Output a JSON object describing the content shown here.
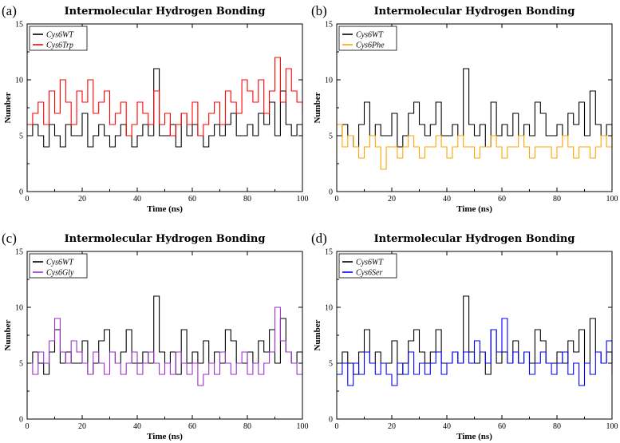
{
  "chart_data": [
    {
      "type": "line",
      "panel_label": "(a)",
      "title": "Intermolecular Hydrogen Bonding",
      "xlabel": "Time (ns)",
      "ylabel": "Number",
      "xlim": [
        0,
        100
      ],
      "ylim": [
        0,
        15
      ],
      "xticks": [
        "0",
        "20",
        "40",
        "60",
        "80",
        "100"
      ],
      "yticks": [
        "0",
        "5",
        "10",
        "15"
      ],
      "legend": [
        "Cys6WT",
        "Cys6Trp"
      ],
      "series": [
        {
          "name": "Cys6WT",
          "color": "#000000",
          "x": [
            0,
            2,
            4,
            6,
            8,
            10,
            12,
            14,
            16,
            18,
            20,
            22,
            24,
            26,
            28,
            30,
            32,
            34,
            36,
            38,
            40,
            42,
            44,
            46,
            48,
            50,
            52,
            54,
            56,
            58,
            60,
            62,
            64,
            66,
            68,
            70,
            72,
            74,
            76,
            78,
            80,
            82,
            84,
            86,
            88,
            90,
            92,
            94,
            96,
            98,
            100
          ],
          "y": [
            5,
            6,
            5,
            4,
            6,
            5,
            4,
            6,
            5,
            5,
            7,
            4,
            5,
            6,
            5,
            4,
            5,
            6,
            5,
            4,
            5,
            6,
            5,
            11,
            5,
            5,
            6,
            4,
            7,
            5,
            6,
            5,
            4,
            5,
            6,
            5,
            6,
            7,
            5,
            5,
            6,
            5,
            7,
            6,
            8,
            5,
            9,
            6,
            5,
            6,
            5
          ]
        },
        {
          "name": "Cys6Trp",
          "color": "#ff0000",
          "x": [
            0,
            2,
            4,
            6,
            8,
            10,
            12,
            14,
            16,
            18,
            20,
            22,
            24,
            26,
            28,
            30,
            32,
            34,
            36,
            38,
            40,
            42,
            44,
            46,
            48,
            50,
            52,
            54,
            56,
            58,
            60,
            62,
            64,
            66,
            68,
            70,
            72,
            74,
            76,
            78,
            80,
            82,
            84,
            86,
            88,
            90,
            92,
            94,
            96,
            98,
            100
          ],
          "y": [
            6,
            7,
            8,
            6,
            9,
            7,
            10,
            8,
            6,
            9,
            8,
            10,
            7,
            8,
            9,
            6,
            7,
            8,
            5,
            6,
            8,
            7,
            6,
            9,
            6,
            7,
            5,
            6,
            7,
            6,
            8,
            5,
            6,
            7,
            8,
            6,
            9,
            8,
            7,
            10,
            9,
            8,
            10,
            7,
            9,
            12,
            8,
            11,
            9,
            8,
            7
          ]
        }
      ]
    },
    {
      "type": "line",
      "panel_label": "(b)",
      "title": "Intermolecular Hydrogen Bonding",
      "xlabel": "Time (ns)",
      "ylabel": "Number",
      "xlim": [
        0,
        100
      ],
      "ylim": [
        0,
        15
      ],
      "xticks": [
        "0",
        "20",
        "40",
        "60",
        "80",
        "100"
      ],
      "yticks": [
        "0",
        "5",
        "10",
        "15"
      ],
      "legend": [
        "Cys6WT",
        "Cys6Phe"
      ],
      "series": [
        {
          "name": "Cys6WT",
          "color": "#000000",
          "x": [
            0,
            2,
            4,
            6,
            8,
            10,
            12,
            14,
            16,
            18,
            20,
            22,
            24,
            26,
            28,
            30,
            32,
            34,
            36,
            38,
            40,
            42,
            44,
            46,
            48,
            50,
            52,
            54,
            56,
            58,
            60,
            62,
            64,
            66,
            68,
            70,
            72,
            74,
            76,
            78,
            80,
            82,
            84,
            86,
            88,
            90,
            92,
            94,
            96,
            98,
            100
          ],
          "y": [
            5,
            6,
            5,
            4,
            6,
            8,
            5,
            6,
            5,
            5,
            7,
            4,
            5,
            7,
            8,
            6,
            5,
            6,
            8,
            5,
            5,
            6,
            5,
            11,
            6,
            5,
            6,
            4,
            8,
            5,
            6,
            5,
            7,
            5,
            6,
            5,
            8,
            7,
            5,
            5,
            6,
            5,
            7,
            6,
            8,
            5,
            9,
            6,
            5,
            6,
            5
          ]
        },
        {
          "name": "Cys6Phe",
          "color": "#ffa500",
          "x": [
            0,
            2,
            4,
            6,
            8,
            10,
            12,
            14,
            16,
            18,
            20,
            22,
            24,
            26,
            28,
            30,
            32,
            34,
            36,
            38,
            40,
            42,
            44,
            46,
            48,
            50,
            52,
            54,
            56,
            58,
            60,
            62,
            64,
            66,
            68,
            70,
            72,
            74,
            76,
            78,
            80,
            82,
            84,
            86,
            88,
            90,
            92,
            94,
            96,
            98,
            100
          ],
          "y": [
            6,
            4,
            5,
            4,
            3,
            4,
            5,
            4,
            2,
            4,
            4,
            3,
            4,
            5,
            4,
            3,
            4,
            4,
            5,
            4,
            3,
            4,
            5,
            4,
            4,
            3,
            4,
            4,
            5,
            4,
            3,
            4,
            4,
            5,
            4,
            3,
            4,
            4,
            4,
            3,
            4,
            5,
            4,
            3,
            4,
            4,
            3,
            4,
            5,
            4,
            5
          ]
        }
      ]
    },
    {
      "type": "line",
      "panel_label": "(c)",
      "title": "Intermolecular Hydrogen Bonding",
      "xlabel": "Time (ns)",
      "ylabel": "Number",
      "xlim": [
        0,
        100
      ],
      "ylim": [
        0,
        15
      ],
      "xticks": [
        "0",
        "20",
        "40",
        "60",
        "80",
        "100"
      ],
      "yticks": [
        "0",
        "5",
        "10",
        "15"
      ],
      "legend": [
        "Cys6WT",
        "Cys6Gly"
      ],
      "series": [
        {
          "name": "Cys6WT",
          "color": "#000000",
          "x": [
            0,
            2,
            4,
            6,
            8,
            10,
            12,
            14,
            16,
            18,
            20,
            22,
            24,
            26,
            28,
            30,
            32,
            34,
            36,
            38,
            40,
            42,
            44,
            46,
            48,
            50,
            52,
            54,
            56,
            58,
            60,
            62,
            64,
            66,
            68,
            70,
            72,
            74,
            76,
            78,
            80,
            82,
            84,
            86,
            88,
            90,
            92,
            94,
            96,
            98,
            100
          ],
          "y": [
            5,
            6,
            5,
            4,
            6,
            8,
            5,
            6,
            5,
            5,
            7,
            4,
            5,
            7,
            8,
            6,
            5,
            6,
            8,
            5,
            5,
            6,
            5,
            11,
            6,
            5,
            6,
            4,
            8,
            5,
            6,
            5,
            7,
            5,
            6,
            5,
            8,
            7,
            5,
            5,
            6,
            5,
            7,
            6,
            8,
            5,
            9,
            6,
            5,
            6,
            5
          ]
        },
        {
          "name": "Cys6Gly",
          "color": "#9932cc",
          "x": [
            0,
            2,
            4,
            6,
            8,
            10,
            12,
            14,
            16,
            18,
            20,
            22,
            24,
            26,
            28,
            30,
            32,
            34,
            36,
            38,
            40,
            42,
            44,
            46,
            48,
            50,
            52,
            54,
            56,
            58,
            60,
            62,
            64,
            66,
            68,
            70,
            72,
            74,
            76,
            78,
            80,
            82,
            84,
            86,
            88,
            90,
            92,
            94,
            96,
            98,
            100
          ],
          "y": [
            5,
            4,
            6,
            5,
            7,
            9,
            6,
            5,
            7,
            6,
            5,
            4,
            6,
            5,
            4,
            6,
            5,
            4,
            5,
            6,
            4,
            5,
            6,
            5,
            4,
            5,
            4,
            6,
            5,
            4,
            5,
            3,
            4,
            5,
            4,
            6,
            5,
            4,
            5,
            6,
            4,
            5,
            4,
            5,
            6,
            10,
            7,
            6,
            5,
            4,
            5
          ]
        }
      ]
    },
    {
      "type": "line",
      "panel_label": "(d)",
      "title": "Intermolecular Hydrogen Bonding",
      "xlabel": "Time (ns)",
      "ylabel": "Number",
      "xlim": [
        0,
        100
      ],
      "ylim": [
        0,
        15
      ],
      "xticks": [
        "0",
        "20",
        "40",
        "60",
        "80",
        "100"
      ],
      "yticks": [
        "0",
        "5",
        "10",
        "15"
      ],
      "legend": [
        "Cys6WT",
        "Cys6Ser"
      ],
      "series": [
        {
          "name": "Cys6WT",
          "color": "#000000",
          "x": [
            0,
            2,
            4,
            6,
            8,
            10,
            12,
            14,
            16,
            18,
            20,
            22,
            24,
            26,
            28,
            30,
            32,
            34,
            36,
            38,
            40,
            42,
            44,
            46,
            48,
            50,
            52,
            54,
            56,
            58,
            60,
            62,
            64,
            66,
            68,
            70,
            72,
            74,
            76,
            78,
            80,
            82,
            84,
            86,
            88,
            90,
            92,
            94,
            96,
            98,
            100
          ],
          "y": [
            5,
            6,
            5,
            4,
            6,
            8,
            5,
            6,
            5,
            5,
            7,
            4,
            5,
            7,
            8,
            6,
            5,
            6,
            8,
            5,
            5,
            6,
            5,
            11,
            6,
            5,
            6,
            4,
            8,
            5,
            6,
            5,
            7,
            5,
            6,
            5,
            8,
            7,
            5,
            5,
            6,
            5,
            7,
            6,
            8,
            5,
            9,
            6,
            5,
            6,
            5
          ]
        },
        {
          "name": "Cys6Ser",
          "color": "#0000ff",
          "x": [
            0,
            2,
            4,
            6,
            8,
            10,
            12,
            14,
            16,
            18,
            20,
            22,
            24,
            26,
            28,
            30,
            32,
            34,
            36,
            38,
            40,
            42,
            44,
            46,
            48,
            50,
            52,
            54,
            56,
            58,
            60,
            62,
            64,
            66,
            68,
            70,
            72,
            74,
            76,
            78,
            80,
            82,
            84,
            86,
            88,
            90,
            92,
            94,
            96,
            98,
            100
          ],
          "y": [
            4,
            5,
            3,
            5,
            4,
            6,
            5,
            4,
            5,
            4,
            3,
            5,
            4,
            6,
            4,
            5,
            4,
            5,
            6,
            4,
            5,
            6,
            5,
            6,
            5,
            7,
            6,
            5,
            8,
            6,
            9,
            5,
            6,
            5,
            6,
            4,
            5,
            6,
            5,
            4,
            5,
            6,
            4,
            5,
            3,
            5,
            4,
            6,
            5,
            7,
            4
          ]
        }
      ]
    }
  ]
}
